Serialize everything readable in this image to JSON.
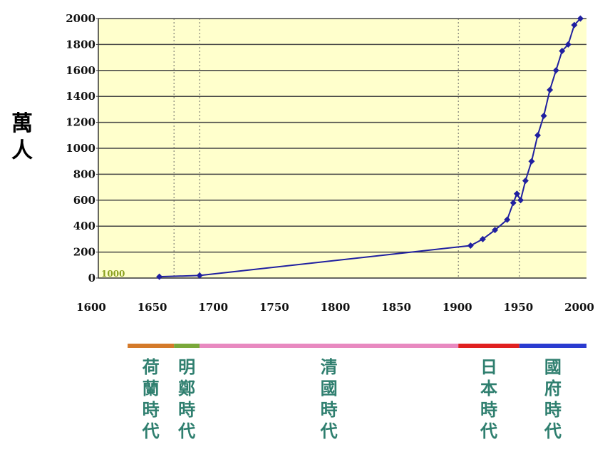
{
  "chart_data": {
    "type": "line",
    "ylabel": "萬人",
    "xlim": [
      1600,
      2000
    ],
    "ylim": [
      0,
      2000
    ],
    "x_ticks": [
      "1600",
      "1650",
      "1700",
      "1750",
      "1800",
      "1850",
      "1900",
      "1950",
      "2000"
    ],
    "y_ticks": [
      "0",
      "200",
      "400",
      "600",
      "800",
      "1000",
      "1200",
      "1400",
      "1600",
      "1800",
      "2000"
    ],
    "x": [
      1650,
      1683,
      1905,
      1915,
      1925,
      1935,
      1940,
      1943,
      1946,
      1950,
      1955,
      1960,
      1965,
      1970,
      1975,
      1980,
      1985,
      1990,
      1995
    ],
    "y": [
      10,
      20,
      250,
      300,
      370,
      450,
      580,
      650,
      600,
      750,
      900,
      1100,
      1250,
      1450,
      1600,
      1750,
      1800,
      1950,
      2000
    ],
    "annotation": "1000",
    "grid": true,
    "background": "#ffffcc",
    "line_color": "#2020a0",
    "eras": [
      {
        "label": "荷蘭時代",
        "start": 1624,
        "end": 1662,
        "color": "#d47a2a"
      },
      {
        "label": "明鄭時代",
        "start": 1662,
        "end": 1683,
        "color": "#7aa83a"
      },
      {
        "label": "清國時代",
        "start": 1683,
        "end": 1895,
        "color": "#e889c0"
      },
      {
        "label": "日本時代",
        "start": 1895,
        "end": 1945,
        "color": "#e02020"
      },
      {
        "label": "國府時代",
        "start": 1945,
        "end": 2000,
        "color": "#2a3bd0"
      }
    ]
  }
}
